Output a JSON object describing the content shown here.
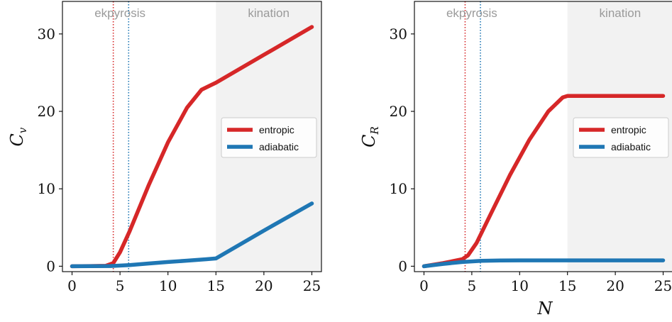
{
  "chart_data": [
    {
      "type": "line",
      "ylabel": "C_v",
      "xlabel": "",
      "xlim": [
        -1,
        26
      ],
      "ylim": [
        -0.7,
        34.2
      ],
      "xticks": [
        0,
        5,
        10,
        15,
        20,
        25
      ],
      "yticks": [
        0,
        10,
        20,
        30
      ],
      "regions": [
        {
          "label": "ekpyrosis"
        },
        {
          "label": "kination",
          "x0": 15,
          "x1": 26,
          "color": "#f2f2f2"
        }
      ],
      "vlines": [
        {
          "x": 4.3,
          "color": "#d62728"
        },
        {
          "x": 5.9,
          "color": "#1f77b4"
        }
      ],
      "legend_position": "center-right",
      "series": [
        {
          "name": "entropic",
          "color": "#d62728",
          "x": [
            0,
            3.5,
            4.3,
            5,
            6,
            8,
            10,
            12,
            13.5,
            14.5,
            15,
            20,
            25
          ],
          "y": [
            0,
            0.05,
            0.4,
            1.8,
            4.5,
            10.5,
            16.0,
            20.5,
            22.8,
            23.4,
            23.7,
            27.3,
            30.9
          ]
        },
        {
          "name": "adiabatic",
          "color": "#1f77b4",
          "x": [
            0,
            4,
            6,
            8,
            10,
            12,
            14,
            15,
            20,
            25
          ],
          "y": [
            0,
            0.02,
            0.15,
            0.35,
            0.55,
            0.72,
            0.9,
            1.0,
            4.6,
            8.1
          ]
        }
      ]
    },
    {
      "type": "line",
      "ylabel": "C_R",
      "xlabel": "N",
      "xlim": [
        -1,
        26
      ],
      "ylim": [
        -0.7,
        34.2
      ],
      "xticks": [
        0,
        5,
        10,
        15,
        20,
        25
      ],
      "yticks": [
        0,
        10,
        20,
        30
      ],
      "regions": [
        {
          "label": "ekpyrosis"
        },
        {
          "label": "kination",
          "x0": 15,
          "x1": 26,
          "color": "#f2f2f2"
        }
      ],
      "vlines": [
        {
          "x": 4.3,
          "color": "#d62728"
        },
        {
          "x": 5.9,
          "color": "#1f77b4"
        }
      ],
      "legend_position": "center-right",
      "series": [
        {
          "name": "entropic",
          "color": "#d62728",
          "x": [
            0,
            2,
            4,
            4.6,
            5.5,
            7,
            9,
            11,
            13,
            14.5,
            15,
            20,
            25
          ],
          "y": [
            0,
            0.4,
            0.9,
            1.4,
            3.0,
            6.8,
            11.8,
            16.3,
            20.0,
            21.8,
            22.0,
            22.0,
            22.0
          ]
        },
        {
          "name": "adiabatic",
          "color": "#1f77b4",
          "x": [
            0,
            2,
            4,
            6,
            8,
            10,
            15,
            20,
            25
          ],
          "y": [
            0,
            0.3,
            0.55,
            0.7,
            0.75,
            0.76,
            0.76,
            0.76,
            0.76
          ]
        }
      ]
    }
  ]
}
